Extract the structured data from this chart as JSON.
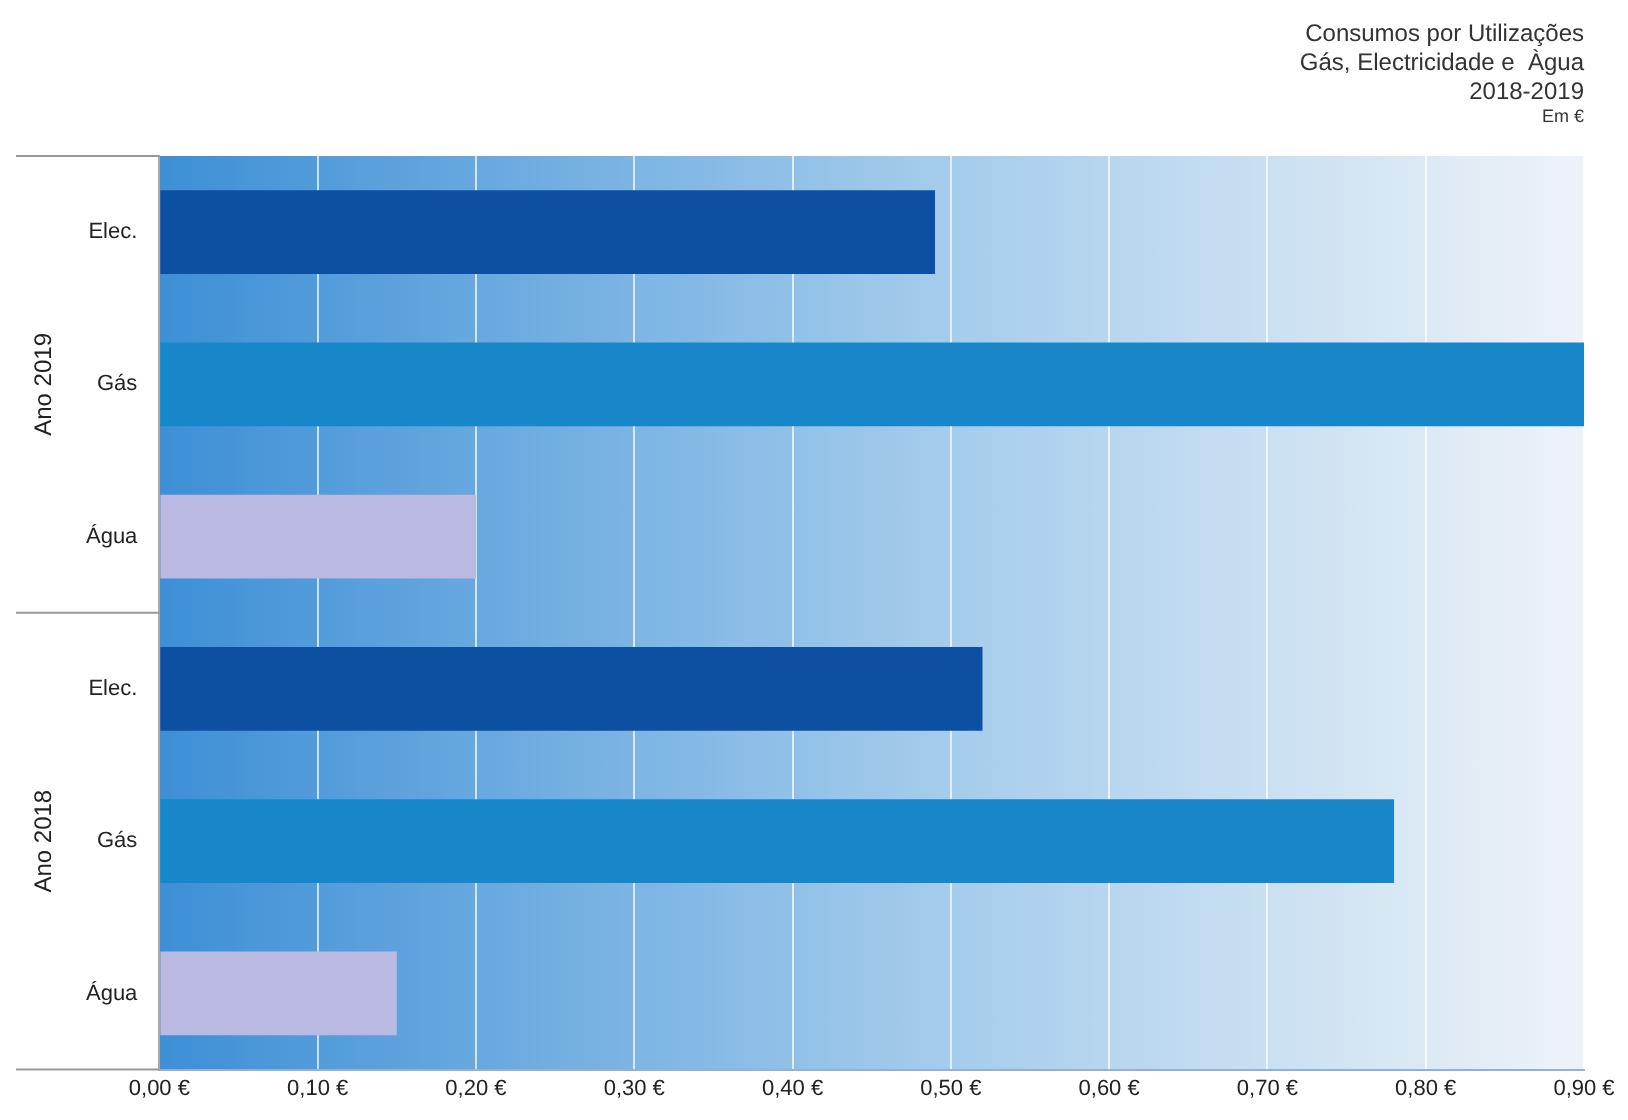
{
  "chart_data": {
    "type": "bar",
    "orientation": "horizontal",
    "title": "Consumos por Utilizações\nGás, Electricidade e  Àgua\n2018-2019",
    "subtitle": "Em €",
    "categories": [
      "Elec.",
      "Gás",
      "Água",
      "Elec.",
      "Gás",
      "Água"
    ],
    "values": [
      0.49,
      0.9,
      0.2,
      0.52,
      0.78,
      0.15
    ],
    "colors": [
      "#0d4fa0",
      "#1787c9",
      "#b9b9e2",
      "#0d4fa0",
      "#1787c9",
      "#b9b9e2"
    ],
    "annotations": [
      "Ano 2019",
      "Ano 2018"
    ],
    "xlim": [
      0,
      0.9
    ],
    "xticks": [
      {
        "value": 0,
        "label": "0,00 €"
      },
      {
        "value": 0.1,
        "label": "0,10 €"
      },
      {
        "value": 0.2,
        "label": "0,20 €"
      },
      {
        "value": 0.3,
        "label": "0,30 €"
      },
      {
        "value": 0.4,
        "label": "0,40 €"
      },
      {
        "value": 0.5,
        "label": "0,50 €"
      },
      {
        "value": 0.6,
        "label": "0,60 €"
      },
      {
        "value": 0.7,
        "label": "0,70 €"
      },
      {
        "value": 0.8,
        "label": "0,80 €"
      },
      {
        "value": 0.9,
        "label": "0,90 €"
      }
    ],
    "grid": "x",
    "legend": false
  }
}
